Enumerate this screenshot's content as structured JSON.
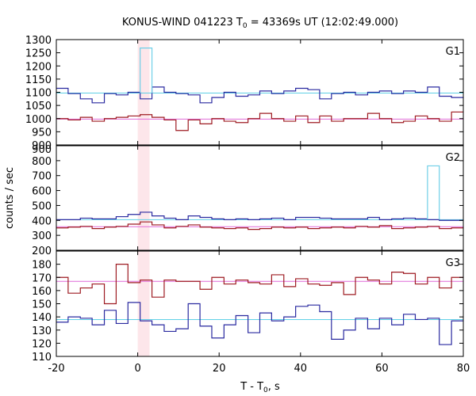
{
  "chart_data": {
    "type": "line",
    "title": "KONUS-WIND 041223 T0 = 43369s UT (12:02:49.000)",
    "title_parts": {
      "before_sub": "KONUS-WIND 041223 T",
      "sub": "0",
      "after_sub": " = 43369s UT (12:02:49.000)"
    },
    "xlabel_parts": {
      "before_sub": "T - T",
      "sub": "0",
      "after_sub": ", s"
    },
    "ylabel": "counts / sec",
    "xlim": [
      -20,
      80
    ],
    "x_ticks": [
      -20,
      0,
      20,
      40,
      60,
      80
    ],
    "highlight_region": [
      0,
      2.9
    ],
    "colors": {
      "current": "#2a2aa0",
      "background": "#9e1b22",
      "current_level": "#5fd0e6",
      "background_level": "#e06ad8",
      "burst": "#6fcfe8",
      "highlight": "#fde6ea"
    },
    "panels": [
      {
        "label": "G1",
        "ylim": [
          900,
          1300
        ],
        "y_ticks": [
          900,
          950,
          1000,
          1050,
          1100,
          1150,
          1200,
          1250,
          1300
        ],
        "edges": [
          -20,
          -17.1,
          -14.1,
          -11.2,
          -8.2,
          -5.3,
          -2.4,
          0.6,
          3.5,
          6.5,
          9.4,
          12.4,
          15.3,
          18.2,
          21.2,
          24.1,
          27.1,
          30,
          32.9,
          35.9,
          38.8,
          41.8,
          44.7,
          47.6,
          50.6,
          53.5,
          56.5,
          59.4,
          62.4,
          65.3,
          68.2,
          71.2,
          74.1,
          77.1,
          80
        ],
        "series": [
          {
            "role": "current",
            "values": [
              1115,
              1095,
              1075,
              1060,
              1095,
              1090,
              1100,
              1075,
              1120,
              1100,
              1095,
              1090,
              1060,
              1080,
              1100,
              1085,
              1090,
              1105,
              1095,
              1105,
              1115,
              1110,
              1075,
              1095,
              1100,
              1090,
              1100,
              1105,
              1095,
              1105,
              1100,
              1120,
              1085,
              1080
            ]
          },
          {
            "role": "background",
            "values": [
              1000,
              995,
              1005,
              990,
              1000,
              1005,
              1010,
              1015,
              1005,
              995,
              955,
              995,
              980,
              1000,
              990,
              985,
              1000,
              1020,
              1000,
              990,
              1010,
              985,
              1010,
              990,
              1000,
              1000,
              1020,
              1000,
              985,
              990,
              1010,
              1000,
              990,
              1025
            ]
          }
        ],
        "levels": [
          {
            "role": "current_level",
            "value": 1097
          },
          {
            "role": "background_level",
            "value": 998
          }
        ],
        "burst": {
          "x": [
            0.6,
            3.5
          ],
          "value": 1268
        }
      },
      {
        "label": "G2",
        "ylim": [
          200,
          900
        ],
        "y_ticks": [
          200,
          300,
          400,
          500,
          600,
          700,
          800,
          900
        ],
        "edges": [
          -20,
          -17.1,
          -14.1,
          -11.2,
          -8.2,
          -5.3,
          -2.4,
          0.6,
          3.5,
          6.5,
          9.4,
          12.4,
          15.3,
          18.2,
          21.2,
          24.1,
          27.1,
          30,
          32.9,
          35.9,
          38.8,
          41.8,
          44.7,
          47.6,
          50.6,
          53.5,
          56.5,
          59.4,
          62.4,
          65.3,
          68.2,
          71.2,
          74.1,
          77.1,
          80
        ],
        "series": [
          {
            "role": "current",
            "values": [
              405,
              405,
              415,
              410,
              410,
              425,
              440,
              455,
              430,
              415,
              405,
              430,
              420,
              410,
              405,
              410,
              405,
              410,
              415,
              405,
              420,
              420,
              415,
              410,
              410,
              410,
              420,
              405,
              410,
              415,
              410,
              405,
              400,
              400
            ]
          },
          {
            "role": "background",
            "values": [
              350,
              355,
              360,
              345,
              355,
              360,
              375,
              390,
              370,
              350,
              360,
              370,
              355,
              350,
              345,
              350,
              340,
              345,
              355,
              350,
              355,
              345,
              350,
              355,
              350,
              360,
              355,
              365,
              345,
              350,
              355,
              360,
              345,
              350
            ]
          }
        ],
        "levels": [
          {
            "role": "current_level",
            "value": 405
          },
          {
            "role": "background_level",
            "value": 358
          }
        ],
        "burst": {
          "x": [
            71.2,
            74.1
          ],
          "value": 765
        }
      },
      {
        "label": "G3",
        "ylim": [
          110,
          190
        ],
        "y_ticks": [
          110,
          120,
          130,
          140,
          150,
          160,
          170,
          180
        ],
        "edges": [
          -20,
          -17.1,
          -14.1,
          -11.2,
          -8.2,
          -5.3,
          -2.4,
          0.6,
          3.5,
          6.5,
          9.4,
          12.4,
          15.3,
          18.2,
          21.2,
          24.1,
          27.1,
          30,
          32.9,
          35.9,
          38.8,
          41.8,
          44.7,
          47.6,
          50.6,
          53.5,
          56.5,
          59.4,
          62.4,
          65.3,
          68.2,
          71.2,
          74.1,
          77.1,
          80
        ],
        "series": [
          {
            "role": "current",
            "values": [
              136,
              140,
              139,
              134,
              145,
              135,
              151,
              137,
              134,
              129,
              131,
              150,
              133,
              124,
              134,
              141,
              128,
              143,
              137,
              140,
              148,
              149,
              144,
              123,
              130,
              139,
              131,
              139,
              134,
              142,
              138,
              139,
              119,
              137
            ]
          },
          {
            "role": "background",
            "values": [
              170,
              158,
              162,
              165,
              150,
              180,
              166,
              168,
              155,
              168,
              167,
              167,
              161,
              170,
              165,
              168,
              166,
              165,
              172,
              163,
              169,
              165,
              164,
              166,
              157,
              170,
              168,
              165,
              174,
              173,
              165,
              170,
              162,
              170
            ]
          }
        ],
        "levels": [
          {
            "role": "current_level",
            "value": 138
          },
          {
            "role": "background_level",
            "value": 167
          }
        ]
      }
    ]
  }
}
